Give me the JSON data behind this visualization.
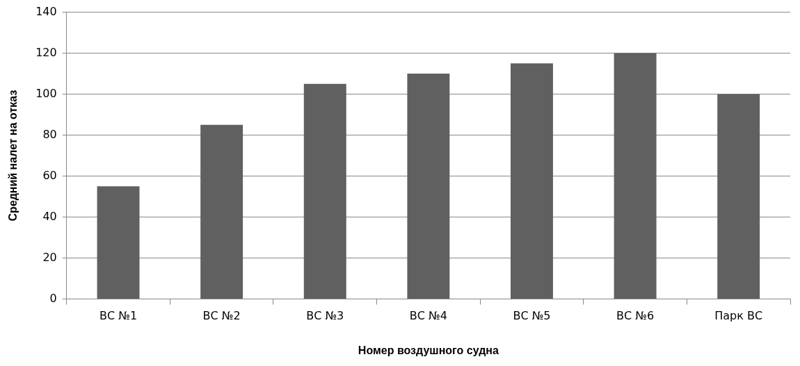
{
  "chart_data": {
    "type": "bar",
    "xlabel": "Номер воздушного судна",
    "ylabel": "Средний налет на отказ",
    "categories": [
      "ВС №1",
      "ВС №2",
      "ВС №3",
      "ВС №4",
      "ВС №5",
      "ВС №6",
      "Парк ВС"
    ],
    "values": [
      55,
      85,
      105,
      110,
      115,
      120,
      100
    ],
    "color": "#606060",
    "ylim": [
      0,
      140
    ],
    "yticks": [
      0,
      20,
      40,
      60,
      80,
      100,
      120,
      140
    ],
    "grid": "y",
    "legend": false
  }
}
